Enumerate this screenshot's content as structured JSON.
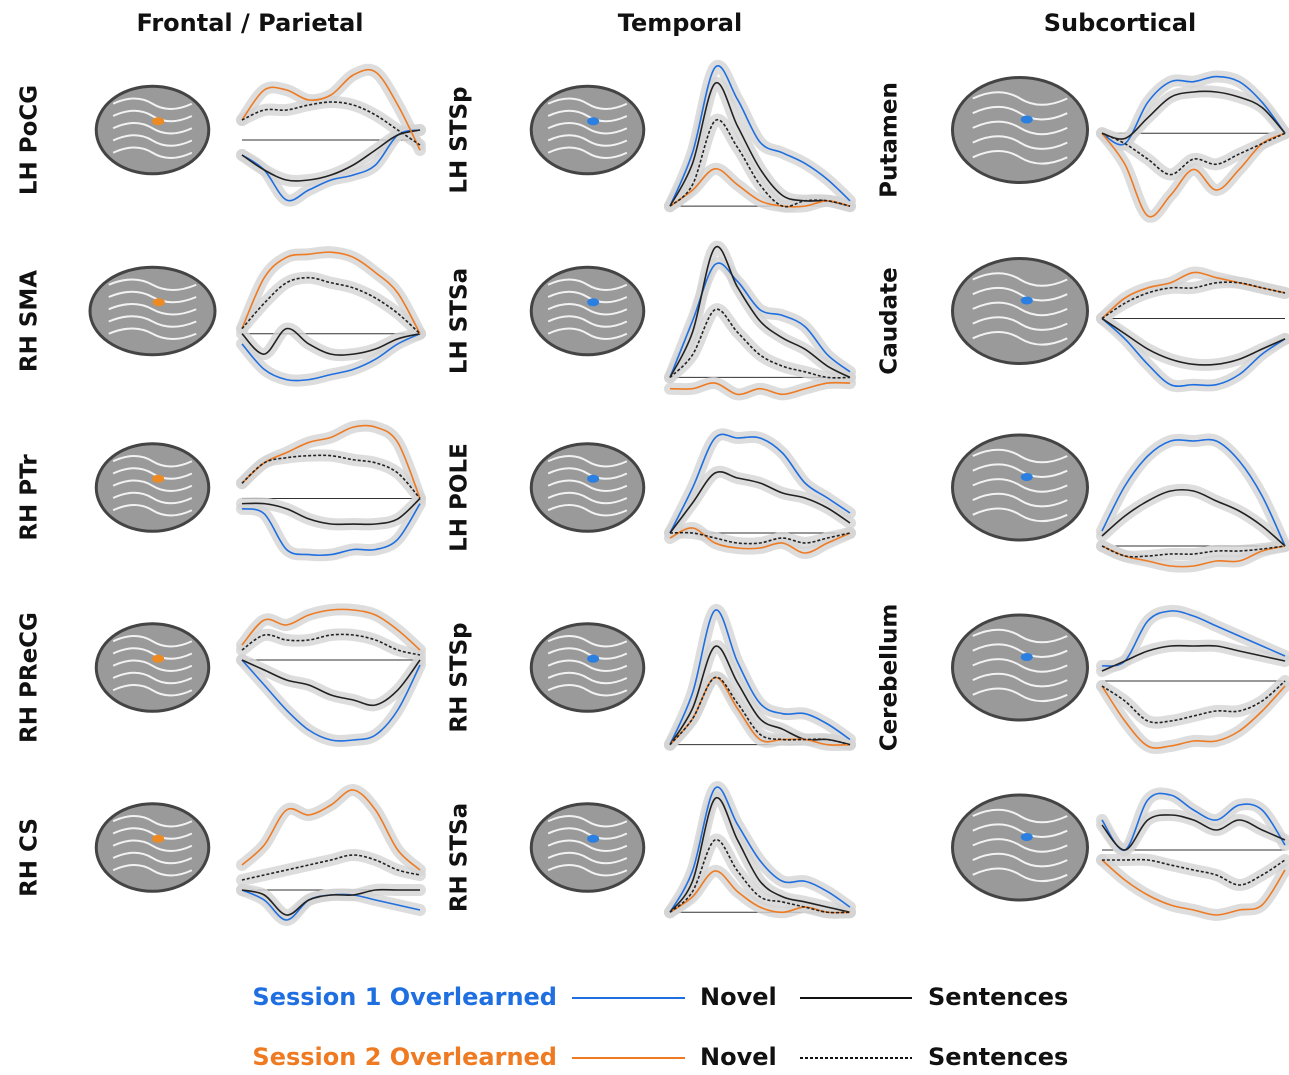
{
  "column_titles": [
    "Frontal / Parietal",
    "Temporal",
    "Subcortical"
  ],
  "legend": [
    {
      "session": "Session 1 Overlearned",
      "color": "#1f6fe0",
      "novel": "Novel",
      "sentences": "Sentences",
      "dashed": false
    },
    {
      "session": "Session 2 Overlearned",
      "color": "#ee7a22",
      "novel": "Novel",
      "sentences": "Sentences",
      "dashed": true
    }
  ],
  "chart_data": [
    {
      "type": "line",
      "label": "LH PoCG",
      "ylim": [
        -0.8,
        0.8
      ],
      "series": [
        {
          "color": "#1f6fe0",
          "values": [
            -0.15,
            -0.3,
            -0.6,
            -0.5,
            -0.4,
            -0.35,
            -0.25,
            0.05,
            0.1
          ]
        },
        {
          "color": "#222222",
          "values": [
            -0.15,
            -0.3,
            -0.4,
            -0.4,
            -0.35,
            -0.25,
            -0.1,
            0.05,
            0.1
          ]
        },
        {
          "color": "#ee7a22",
          "values": [
            0.2,
            0.5,
            0.5,
            0.4,
            0.45,
            0.65,
            0.68,
            0.35,
            -0.1
          ]
        },
        {
          "color": "#222222",
          "dashed": true,
          "values": [
            0.2,
            0.3,
            0.3,
            0.35,
            0.38,
            0.35,
            0.25,
            0.1,
            -0.05
          ]
        }
      ]
    },
    {
      "type": "line",
      "label": "RH SMA",
      "ylim": [
        -0.65,
        0.9
      ],
      "series": [
        {
          "color": "#1f6fe0",
          "values": [
            -0.1,
            -0.35,
            -0.45,
            -0.45,
            -0.4,
            -0.35,
            -0.25,
            -0.1,
            0
          ]
        },
        {
          "color": "#222222",
          "values": [
            0,
            -0.2,
            0.05,
            -0.1,
            -0.2,
            -0.2,
            -0.15,
            -0.05,
            0
          ]
        },
        {
          "color": "#ee7a22",
          "values": [
            0.05,
            0.55,
            0.75,
            0.78,
            0.8,
            0.75,
            0.6,
            0.4,
            0
          ]
        },
        {
          "color": "#222222",
          "dashed": true,
          "values": [
            0.05,
            0.3,
            0.5,
            0.55,
            0.5,
            0.45,
            0.35,
            0.2,
            0
          ]
        }
      ]
    },
    {
      "type": "line",
      "label": "RH PTr",
      "ylim": [
        -0.75,
        0.77
      ],
      "series": [
        {
          "color": "#1f6fe0",
          "values": [
            -0.1,
            -0.15,
            -0.5,
            -0.55,
            -0.55,
            -0.5,
            -0.5,
            -0.4,
            -0.05
          ]
        },
        {
          "color": "#222222",
          "values": [
            -0.05,
            -0.05,
            -0.1,
            -0.2,
            -0.25,
            -0.25,
            -0.25,
            -0.2,
            0
          ]
        },
        {
          "color": "#ee7a22",
          "values": [
            0.15,
            0.35,
            0.45,
            0.55,
            0.6,
            0.7,
            0.7,
            0.55,
            0
          ]
        },
        {
          "color": "#222222",
          "dashed": true,
          "values": [
            0.15,
            0.35,
            0.4,
            0.42,
            0.42,
            0.38,
            0.35,
            0.25,
            0
          ]
        }
      ]
    },
    {
      "type": "line",
      "label": "RH PReCG",
      "ylim": [
        -0.95,
        0.6
      ],
      "series": [
        {
          "color": "#1f6fe0",
          "values": [
            0,
            -0.25,
            -0.5,
            -0.7,
            -0.8,
            -0.8,
            -0.75,
            -0.5,
            -0.05
          ]
        },
        {
          "color": "#222222",
          "values": [
            0,
            -0.1,
            -0.2,
            -0.25,
            -0.35,
            -0.4,
            -0.45,
            -0.3,
            0
          ]
        },
        {
          "color": "#ee7a22",
          "values": [
            0.15,
            0.4,
            0.35,
            0.45,
            0.5,
            0.5,
            0.45,
            0.3,
            0.1
          ]
        },
        {
          "color": "#222222",
          "dashed": true,
          "values": [
            0.1,
            0.25,
            0.2,
            0.2,
            0.25,
            0.25,
            0.2,
            0.1,
            0.05
          ]
        }
      ]
    },
    {
      "type": "line",
      "label": "RH CS",
      "ylim": [
        -0.45,
        1.1
      ],
      "series": [
        {
          "color": "#1f6fe0",
          "values": [
            0,
            -0.1,
            -0.3,
            -0.1,
            -0.05,
            -0.05,
            -0.1,
            -0.15,
            -0.2
          ]
        },
        {
          "color": "#222222",
          "values": [
            0,
            -0.05,
            -0.25,
            -0.1,
            -0.05,
            -0.05,
            0,
            0,
            0
          ]
        },
        {
          "color": "#ee7a22",
          "values": [
            0.25,
            0.45,
            0.8,
            0.75,
            0.85,
            1.0,
            0.8,
            0.4,
            0.2
          ]
        },
        {
          "color": "#222222",
          "dashed": true,
          "values": [
            0.1,
            0.15,
            0.2,
            0.25,
            0.3,
            0.35,
            0.3,
            0.2,
            0.15
          ]
        }
      ]
    },
    {
      "type": "line",
      "label": "LH STSp",
      "ylim": [
        -0.13,
        1.37
      ],
      "series": [
        {
          "color": "#1f6fe0",
          "values": [
            0,
            0.5,
            1.3,
            1.0,
            0.6,
            0.5,
            0.4,
            0.25,
            0.05
          ]
        },
        {
          "color": "#222222",
          "values": [
            0,
            0.4,
            1.15,
            0.75,
            0.35,
            0.1,
            0.05,
            0.05,
            0
          ]
        },
        {
          "color": "#ee7a22",
          "values": [
            0,
            0.15,
            0.35,
            0.2,
            0.05,
            0,
            0,
            0.05,
            0
          ]
        },
        {
          "color": "#222222",
          "dashed": true,
          "values": [
            0,
            0.2,
            0.8,
            0.55,
            0.2,
            0,
            0.05,
            0.05,
            0
          ]
        }
      ]
    },
    {
      "type": "line",
      "label": "LH STSa",
      "ylim": [
        -0.2,
        1.2
      ],
      "series": [
        {
          "color": "#1f6fe0",
          "values": [
            0,
            0.5,
            1.0,
            0.85,
            0.6,
            0.55,
            0.45,
            0.2,
            0.05
          ]
        },
        {
          "color": "#222222",
          "values": [
            0,
            0.4,
            1.15,
            0.8,
            0.5,
            0.35,
            0.25,
            0.1,
            0
          ]
        },
        {
          "color": "#ee7a22",
          "values": [
            -0.1,
            -0.1,
            -0.05,
            -0.15,
            -0.1,
            -0.15,
            -0.1,
            -0.05,
            -0.05
          ]
        },
        {
          "color": "#222222",
          "dashed": true,
          "values": [
            0,
            0.2,
            0.6,
            0.4,
            0.2,
            0.1,
            0.05,
            0,
            0
          ]
        }
      ]
    },
    {
      "type": "line",
      "label": "LH POLE",
      "ylim": [
        -0.42,
        1.13
      ],
      "series": [
        {
          "color": "#1f6fe0",
          "values": [
            0,
            0.45,
            0.95,
            0.95,
            0.95,
            0.8,
            0.5,
            0.35,
            0.2
          ]
        },
        {
          "color": "#222222",
          "values": [
            0,
            0.3,
            0.6,
            0.55,
            0.5,
            0.4,
            0.35,
            0.25,
            0.1
          ]
        },
        {
          "color": "#ee7a22",
          "values": [
            -0.05,
            0.05,
            -0.1,
            -0.15,
            -0.15,
            -0.1,
            -0.2,
            -0.1,
            0
          ]
        },
        {
          "color": "#222222",
          "dashed": true,
          "values": [
            0,
            0,
            -0.05,
            -0.1,
            -0.1,
            -0.05,
            -0.1,
            -0.05,
            0
          ]
        }
      ]
    },
    {
      "type": "line",
      "label": "RH STSp",
      "ylim": [
        -0.1,
        1.4
      ],
      "series": [
        {
          "color": "#1f6fe0",
          "values": [
            0,
            0.5,
            1.3,
            0.8,
            0.4,
            0.3,
            0.3,
            0.2,
            0.05
          ]
        },
        {
          "color": "#222222",
          "values": [
            0,
            0.35,
            0.95,
            0.6,
            0.25,
            0.15,
            0.05,
            0.05,
            0
          ]
        },
        {
          "color": "#ee7a22",
          "values": [
            0,
            0.25,
            0.65,
            0.35,
            0.05,
            0.05,
            0.05,
            0,
            0
          ]
        },
        {
          "color": "#222222",
          "dashed": true,
          "values": [
            0,
            0.25,
            0.65,
            0.4,
            0.1,
            0.05,
            0.05,
            0.05,
            0
          ]
        }
      ]
    },
    {
      "type": "line",
      "label": "RH STSa",
      "ylim": [
        -0.22,
        1.28
      ],
      "series": [
        {
          "color": "#1f6fe0",
          "values": [
            0,
            0.4,
            1.2,
            0.85,
            0.5,
            0.3,
            0.3,
            0.2,
            0.05
          ]
        },
        {
          "color": "#222222",
          "values": [
            0,
            0.3,
            1.1,
            0.7,
            0.3,
            0.15,
            0.1,
            0.05,
            0
          ]
        },
        {
          "color": "#ee7a22",
          "values": [
            0,
            0.15,
            0.4,
            0.2,
            0.05,
            0,
            0.05,
            0,
            0
          ]
        },
        {
          "color": "#222222",
          "dashed": true,
          "values": [
            0,
            0.2,
            0.7,
            0.4,
            0.15,
            0.1,
            0.05,
            0,
            0
          ]
        }
      ]
    },
    {
      "type": "line",
      "label": "Putamen",
      "ylim": [
        -0.84,
        0.71
      ],
      "series": [
        {
          "color": "#1f6fe0",
          "values": [
            0,
            -0.1,
            0.3,
            0.5,
            0.5,
            0.55,
            0.5,
            0.3,
            0
          ]
        },
        {
          "color": "#222222",
          "values": [
            0,
            -0.05,
            0.15,
            0.35,
            0.4,
            0.4,
            0.35,
            0.25,
            0
          ]
        },
        {
          "color": "#ee7a22",
          "values": [
            0,
            -0.3,
            -0.8,
            -0.6,
            -0.35,
            -0.55,
            -0.35,
            -0.1,
            0
          ]
        },
        {
          "color": "#222222",
          "dashed": true,
          "values": [
            0,
            -0.1,
            -0.25,
            -0.4,
            -0.25,
            -0.3,
            -0.2,
            -0.1,
            0
          ]
        }
      ]
    },
    {
      "type": "line",
      "label": "Caudate",
      "ylim": [
        -0.8,
        0.75
      ],
      "series": [
        {
          "color": "#1f6fe0",
          "values": [
            0,
            -0.2,
            -0.45,
            -0.65,
            -0.65,
            -0.65,
            -0.55,
            -0.35,
            -0.2
          ]
        },
        {
          "color": "#222222",
          "values": [
            0,
            -0.15,
            -0.3,
            -0.4,
            -0.45,
            -0.45,
            -0.4,
            -0.3,
            -0.2
          ]
        },
        {
          "color": "#ee7a22",
          "values": [
            0,
            0.2,
            0.3,
            0.35,
            0.45,
            0.4,
            0.35,
            0.3,
            0.25
          ]
        },
        {
          "color": "#222222",
          "dashed": true,
          "values": [
            0,
            0.15,
            0.25,
            0.3,
            0.3,
            0.35,
            0.35,
            0.3,
            0.25
          ]
        }
      ]
    },
    {
      "type": "line",
      "ylim": [
        -0.29,
        1.26
      ],
      "series": [
        {
          "color": "#1f6fe0",
          "values": [
            0.15,
            0.6,
            0.9,
            1.05,
            1.05,
            1.05,
            0.85,
            0.5,
            0
          ]
        },
        {
          "color": "#222222",
          "values": [
            0.1,
            0.3,
            0.45,
            0.55,
            0.55,
            0.45,
            0.35,
            0.2,
            0
          ]
        },
        {
          "color": "#ee7a22",
          "values": [
            0,
            -0.1,
            -0.15,
            -0.2,
            -0.2,
            -0.15,
            -0.15,
            -0.05,
            0
          ]
        },
        {
          "color": "#222222",
          "dashed": true,
          "values": [
            0,
            -0.1,
            -0.1,
            -0.08,
            -0.08,
            -0.05,
            -0.05,
            -0.03,
            0
          ]
        }
      ]
    },
    {
      "type": "line",
      "label": "Cerebellum",
      "ylim": [
        -0.74,
        0.81
      ],
      "series": [
        {
          "color": "#1f6fe0",
          "values": [
            0.15,
            0.2,
            0.6,
            0.7,
            0.65,
            0.55,
            0.45,
            0.35,
            0.25
          ]
        },
        {
          "color": "#222222",
          "values": [
            0.1,
            0.2,
            0.3,
            0.35,
            0.35,
            0.35,
            0.3,
            0.25,
            0.2
          ]
        },
        {
          "color": "#ee7a22",
          "values": [
            -0.05,
            -0.4,
            -0.65,
            -0.65,
            -0.6,
            -0.6,
            -0.5,
            -0.3,
            -0.05
          ]
        },
        {
          "color": "#222222",
          "dashed": true,
          "values": [
            -0.05,
            -0.2,
            -0.4,
            -0.4,
            -0.35,
            -0.3,
            -0.3,
            -0.2,
            0
          ]
        }
      ]
    },
    {
      "type": "line",
      "ylim": [
        -0.85,
        0.7
      ],
      "series": [
        {
          "color": "#1f6fe0",
          "values": [
            0.3,
            0,
            0.5,
            0.55,
            0.4,
            0.3,
            0.45,
            0.4,
            0.05
          ]
        },
        {
          "color": "#222222",
          "values": [
            0.25,
            0,
            0.3,
            0.35,
            0.3,
            0.2,
            0.3,
            0.2,
            0.1
          ]
        },
        {
          "color": "#ee7a22",
          "values": [
            -0.1,
            -0.3,
            -0.45,
            -0.55,
            -0.6,
            -0.65,
            -0.6,
            -0.55,
            -0.2
          ]
        },
        {
          "color": "#222222",
          "dashed": true,
          "values": [
            -0.1,
            -0.1,
            -0.1,
            -0.15,
            -0.2,
            -0.25,
            -0.35,
            -0.25,
            -0.1
          ]
        }
      ]
    }
  ]
}
